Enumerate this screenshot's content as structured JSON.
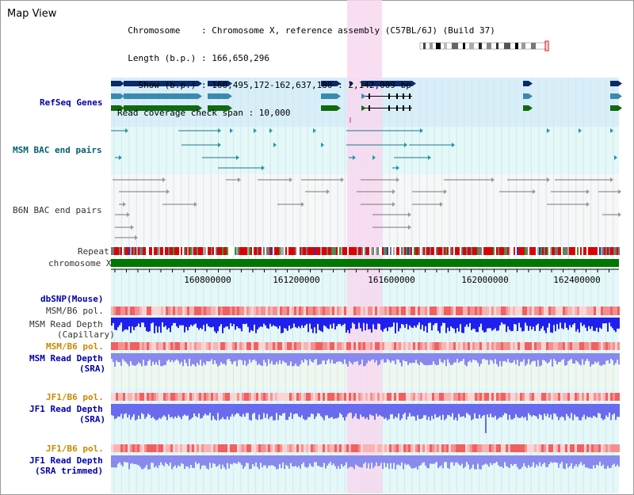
{
  "header": {
    "title": "Map View",
    "info_lines": [
      "  Chromosome    : Chromosome X, reference assembly (C57BL/6J) (Build 37)",
      "  Length (b.p.) : 166,650,296",
      "    Show (b.p.) : 160,495,172-162,637,180 : 2,142,009 bp",
      "Read coverage check span : 10,000"
    ]
  },
  "tracks": {
    "refseq": "RefSeq Genes",
    "msm_bac": "MSM BAC end pairs",
    "b6n_bac": "B6N BAC end pairs",
    "repeat": "Repeat",
    "chromosome": "chromosome X",
    "dbsnp": "dbSNP(Mouse)",
    "msm_b6_pol_1": "MSM/B6 pol.",
    "msm_depth_cap_1": "MSM Read Depth",
    "msm_depth_cap_2": "(Capillary)",
    "msm_b6_pol_2": "MSM/B6 pol.",
    "msm_depth_sra_1": "MSM Read Depth",
    "msm_depth_sra_2": "(SRA)",
    "jf1_b6_pol_1": "JF1/B6 pol.",
    "jf1_depth_sra_1": "JF1 Read Depth",
    "jf1_depth_sra_2": "(SRA)",
    "jf1_b6_pol_2": "JF1/B6 pol.",
    "jf1_depth_trim_1": "JF1 Read Depth",
    "jf1_depth_trim_2": "(SRA trimmed)"
  },
  "axis": {
    "ticks": [
      "160800000",
      "161200000",
      "161600000",
      "162000000",
      "162400000"
    ]
  },
  "colors": {
    "highlight": "#f8d8f0",
    "refseq_bg": "#d8eef8",
    "bac_bg": "#e4f8f8",
    "chromosome": "#007700",
    "repeat_red": "#dd0000",
    "depth_blue": "#2020ee",
    "depth_light": "#7070ee",
    "pol_red": "#f08080"
  }
}
